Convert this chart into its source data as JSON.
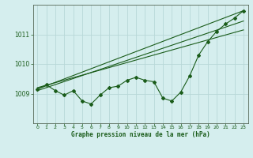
{
  "title": "Graphe pression niveau de la mer (hPa)",
  "bg_color": "#d5eeee",
  "grid_color": "#b8d8d8",
  "line_color": "#1a5c1a",
  "xlim": [
    -0.5,
    23.5
  ],
  "ylim": [
    1008.0,
    1012.0
  ],
  "yticks": [
    1009,
    1010,
    1011
  ],
  "xticks": [
    0,
    1,
    2,
    3,
    4,
    5,
    6,
    7,
    8,
    9,
    10,
    11,
    12,
    13,
    14,
    15,
    16,
    17,
    18,
    19,
    20,
    21,
    22,
    23
  ],
  "main_line_x": [
    0,
    1,
    2,
    3,
    4,
    5,
    6,
    7,
    8,
    9,
    10,
    11,
    12,
    13,
    14,
    15,
    16,
    17,
    18,
    19,
    20,
    21,
    22,
    23
  ],
  "main_line_y": [
    1009.15,
    1009.3,
    1009.1,
    1008.95,
    1009.1,
    1008.75,
    1008.65,
    1008.95,
    1009.2,
    1009.25,
    1009.45,
    1009.55,
    1009.45,
    1009.4,
    1008.85,
    1008.75,
    1009.05,
    1009.6,
    1010.3,
    1010.75,
    1011.1,
    1011.35,
    1011.55,
    1011.8
  ],
  "trend1_x": [
    0,
    23
  ],
  "trend1_y": [
    1009.15,
    1011.8
  ],
  "trend2_x": [
    0,
    23
  ],
  "trend2_y": [
    1009.1,
    1011.45
  ],
  "trend3_x": [
    0,
    23
  ],
  "trend3_y": [
    1009.2,
    1011.15
  ]
}
